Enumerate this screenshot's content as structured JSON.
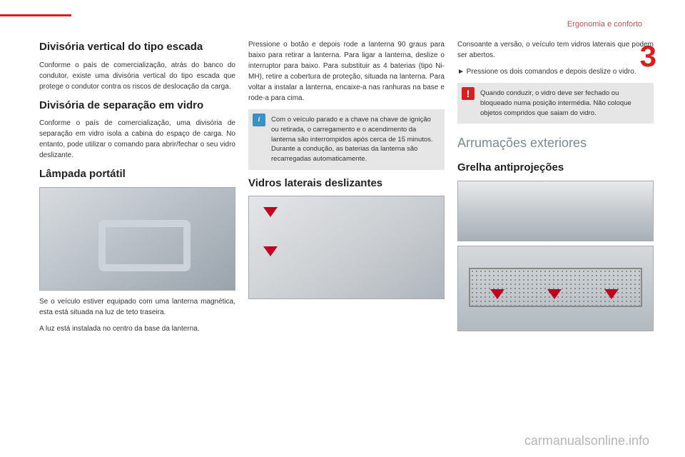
{
  "header": {
    "section_label": "Ergonomia e conforto",
    "page_number": "3"
  },
  "col1": {
    "h1_title": "Divisória vertical do tipo escada",
    "h1_text": "Conforme o país de comercialização, atrás do banco do condutor, existe uma divisória vertical do tipo escada que protege o condutor contra os riscos de deslocação da carga.",
    "h2_title": "Divisória de separação em vidro",
    "h2_text": "Conforme o país de comercialização, uma divisória de separação em vidro isola a cabina do espaço de carga.\nNo entanto, pode utilizar o comando para abrir/fechar o seu vidro deslizante.",
    "h3_title": "Lâmpada portátil",
    "h3_p1": "Se o veículo estiver equipado com uma lanterna magnética, esta está situada na luz de teto traseira.",
    "h3_p2": "A luz está instalada no centro da base da lanterna."
  },
  "col2": {
    "p1": "Pressione o botão e depois rode a lanterna 90 graus para baixo para retirar a lanterna.\nPara ligar a lanterna, deslize o interruptor para baixo.\nPara substituir as 4 baterias (tipo Ni-MH), retire a cobertura de proteção, situada na lanterna.\nPara voltar a instalar a lanterna, encaixe-a nas ranhuras na base e rode-a para cima.",
    "info": "Com o veículo parado e a chave na chave de ignição ou retirada, o carregamento e o acendimento da lanterna são interrompidos após cerca de 15 minutos. Durante a condução, as baterias da lanterna são recarregadas automaticamente.",
    "h_title": "Vidros laterais deslizantes"
  },
  "col3": {
    "p1": "Consoante a versão, o veículo tem vidros laterais que podem ser abertos.",
    "p2": "►  Pressione os dois comandos e depois deslize o vidro.",
    "warn": "Quando conduzir, o vidro deve ser fechado ou bloqueado numa posição intermédia.\nNão coloque objetos compridos que saiam do vidro.",
    "section_title": "Arrumações exteriores",
    "h_title": "Grelha antiprojeções"
  },
  "watermark": "carmanualsonline.info"
}
